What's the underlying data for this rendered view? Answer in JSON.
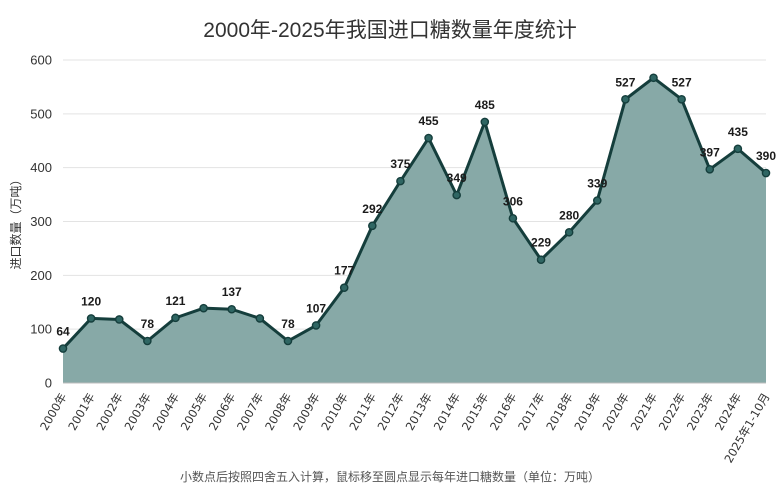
{
  "chart_data": {
    "type": "area",
    "title": "2000年-2025年我国进口糖数量年度统计",
    "ylabel": "进口数量（万吨）",
    "xlabel": "",
    "ylim": [
      0,
      600
    ],
    "yticks": [
      0,
      100,
      200,
      300,
      400,
      500,
      600
    ],
    "grid": true,
    "categories": [
      "2000年",
      "2001年",
      "2002年",
      "2003年",
      "2004年",
      "2005年",
      "2006年",
      "2007年",
      "2008年",
      "2009年",
      "2010年",
      "2011年",
      "2012年",
      "2013年",
      "2014年",
      "2015年",
      "2016年",
      "2017年",
      "2018年",
      "2019年",
      "2020年",
      "2021年",
      "2022年",
      "2023年",
      "2024年",
      "2025年1-10月"
    ],
    "values": [
      64,
      120,
      118,
      78,
      121,
      139,
      137,
      120,
      78,
      107,
      177,
      292,
      375,
      455,
      349,
      485,
      306,
      229,
      280,
      339,
      527,
      567,
      527,
      397,
      435,
      390
    ],
    "data_labels": [
      "64",
      "120",
      "",
      "78",
      "121",
      "",
      "137",
      "",
      "78",
      "107",
      "177",
      "292",
      "375",
      "455",
      "349",
      "485",
      "306",
      "229",
      "280",
      "339",
      "527",
      "",
      "527",
      "397",
      "435",
      "390"
    ],
    "colors": {
      "line": "#153e3c",
      "fill": "#87a9a7",
      "grid": "#e3e3e3"
    }
  },
  "footer": "小数点后按照四舍五入计算，鼠标移至圆点显示每年进口糖数量（单位：万吨）"
}
